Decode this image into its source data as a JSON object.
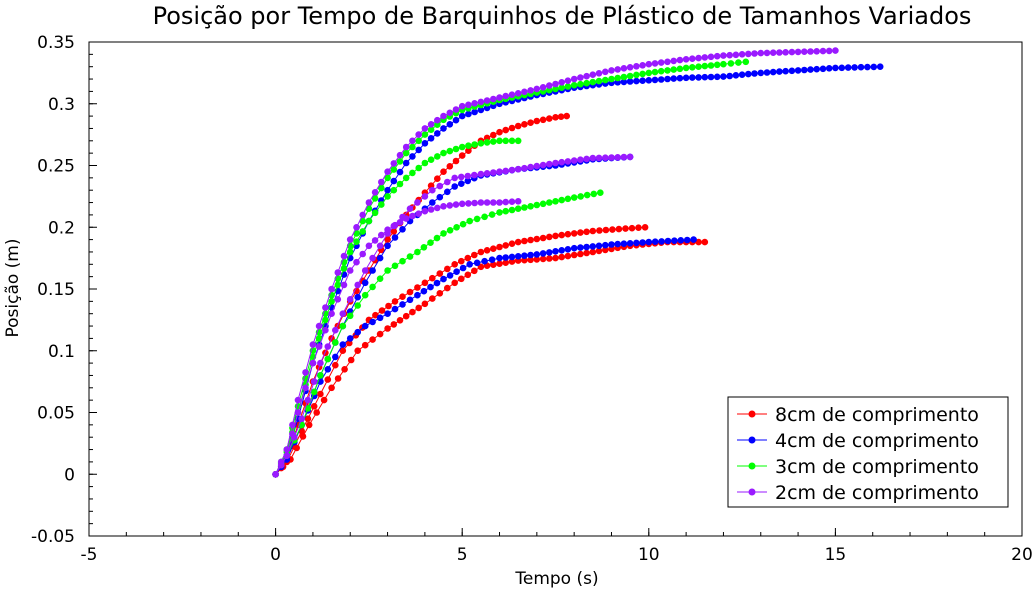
{
  "chart_data": {
    "type": "scatter",
    "title": "Posição por Tempo de Barquinhos de Plástico de Tamanhos Variados",
    "xlabel": "Tempo (s)",
    "ylabel": "Posição (m)",
    "xlim": [
      -5,
      20
    ],
    "ylim": [
      -0.05,
      0.35
    ],
    "x_ticks": [
      -5,
      0,
      5,
      10,
      15,
      20
    ],
    "y_ticks": [
      -0.05,
      0,
      0.05,
      0.1,
      0.15,
      0.2,
      0.25,
      0.3,
      0.35
    ],
    "x_tick_labels": [
      "-5",
      "0",
      "5",
      "10",
      "15",
      "20"
    ],
    "y_tick_labels": [
      "-0.05",
      "0",
      "0.05",
      "0.1",
      "0.15",
      "0.2",
      "0.25",
      "0.3",
      "0.35"
    ],
    "grid": false,
    "legend_position": "bottom-right",
    "series": [
      {
        "name": "8cm de comprimento",
        "color": "#ff0000",
        "runs": [
          {
            "points": [
              [
                0,
                0
              ],
              [
                0.3,
                0.012
              ],
              [
                0.6,
                0.04
              ],
              [
                1.0,
                0.075
              ],
              [
                1.5,
                0.11
              ],
              [
                2.0,
                0.14
              ],
              [
                2.5,
                0.165
              ],
              [
                3.0,
                0.19
              ],
              [
                3.5,
                0.21
              ],
              [
                4.0,
                0.228
              ],
              [
                4.5,
                0.245
              ],
              [
                5.0,
                0.258
              ],
              [
                5.5,
                0.27
              ],
              [
                6.0,
                0.277
              ],
              [
                6.5,
                0.282
              ],
              [
                7.0,
                0.286
              ],
              [
                7.5,
                0.289
              ],
              [
                7.8,
                0.29
              ]
            ]
          },
          {
            "points": [
              [
                0,
                0
              ],
              [
                0.3,
                0.01
              ],
              [
                0.7,
                0.035
              ],
              [
                1.2,
                0.065
              ],
              [
                1.8,
                0.1
              ],
              [
                2.5,
                0.125
              ],
              [
                3.2,
                0.14
              ],
              [
                4.0,
                0.155
              ],
              [
                4.8,
                0.17
              ],
              [
                5.5,
                0.18
              ],
              [
                6.5,
                0.188
              ],
              [
                7.5,
                0.193
              ],
              [
                8.5,
                0.197
              ],
              [
                9.9,
                0.2
              ]
            ]
          },
          {
            "points": [
              [
                0,
                0
              ],
              [
                0.4,
                0.012
              ],
              [
                0.9,
                0.04
              ],
              [
                1.5,
                0.07
              ],
              [
                2.2,
                0.1
              ],
              [
                3.0,
                0.118
              ],
              [
                4.0,
                0.138
              ],
              [
                4.8,
                0.155
              ],
              [
                5.5,
                0.168
              ],
              [
                6.5,
                0.173
              ],
              [
                7.5,
                0.175
              ],
              [
                8.5,
                0.18
              ],
              [
                9.5,
                0.185
              ],
              [
                10.5,
                0.188
              ],
              [
                11.5,
                0.188
              ]
            ]
          }
        ]
      },
      {
        "name": "4cm de comprimento",
        "color": "#0000ff",
        "runs": [
          {
            "points": [
              [
                0,
                0
              ],
              [
                0.3,
                0.015
              ],
              [
                0.6,
                0.045
              ],
              [
                1.0,
                0.09
              ],
              [
                1.5,
                0.135
              ],
              [
                2.0,
                0.175
              ],
              [
                2.5,
                0.205
              ],
              [
                3.0,
                0.23
              ],
              [
                3.5,
                0.252
              ],
              [
                4.0,
                0.268
              ],
              [
                4.5,
                0.28
              ],
              [
                5.0,
                0.29
              ],
              [
                6.0,
                0.3
              ],
              [
                7.0,
                0.307
              ],
              [
                8.0,
                0.313
              ],
              [
                9.0,
                0.317
              ],
              [
                10.0,
                0.319
              ],
              [
                11.0,
                0.321
              ],
              [
                12.0,
                0.322
              ],
              [
                13.0,
                0.325
              ],
              [
                14.0,
                0.327
              ],
              [
                15.0,
                0.329
              ],
              [
                16.2,
                0.33
              ]
            ]
          },
          {
            "points": [
              [
                0,
                0
              ],
              [
                0.3,
                0.012
              ],
              [
                0.7,
                0.04
              ],
              [
                1.2,
                0.08
              ],
              [
                1.8,
                0.12
              ],
              [
                2.4,
                0.155
              ],
              [
                3.0,
                0.185
              ],
              [
                3.6,
                0.205
              ],
              [
                4.2,
                0.22
              ],
              [
                4.8,
                0.233
              ],
              [
                5.5,
                0.242
              ],
              [
                6.5,
                0.247
              ],
              [
                7.5,
                0.25
              ],
              [
                8.5,
                0.255
              ],
              [
                9.5,
                0.257
              ]
            ]
          },
          {
            "points": [
              [
                0,
                0
              ],
              [
                0.3,
                0.012
              ],
              [
                0.7,
                0.04
              ],
              [
                1.2,
                0.075
              ],
              [
                1.8,
                0.105
              ],
              [
                2.4,
                0.12
              ],
              [
                3.0,
                0.13
              ],
              [
                3.8,
                0.145
              ],
              [
                4.5,
                0.158
              ],
              [
                5.2,
                0.17
              ],
              [
                6.0,
                0.175
              ],
              [
                7.0,
                0.178
              ],
              [
                8.0,
                0.183
              ],
              [
                9.0,
                0.186
              ],
              [
                10.0,
                0.188
              ],
              [
                11.2,
                0.19
              ]
            ]
          }
        ]
      },
      {
        "name": "3cm de comprimento",
        "color": "#00ff00",
        "runs": [
          {
            "points": [
              [
                0,
                0
              ],
              [
                0.3,
                0.02
              ],
              [
                0.6,
                0.055
              ],
              [
                1.0,
                0.1
              ],
              [
                1.5,
                0.145
              ],
              [
                2.0,
                0.185
              ],
              [
                2.5,
                0.215
              ],
              [
                3.0,
                0.24
              ],
              [
                3.5,
                0.26
              ],
              [
                4.0,
                0.275
              ],
              [
                4.5,
                0.287
              ],
              [
                5.0,
                0.295
              ],
              [
                6.0,
                0.303
              ],
              [
                7.0,
                0.309
              ],
              [
                8.0,
                0.315
              ],
              [
                9.0,
                0.32
              ],
              [
                10.0,
                0.325
              ],
              [
                11.0,
                0.329
              ],
              [
                12.0,
                0.332
              ],
              [
                12.6,
                0.334
              ]
            ]
          },
          {
            "points": [
              [
                0,
                0
              ],
              [
                0.3,
                0.018
              ],
              [
                0.6,
                0.05
              ],
              [
                1.0,
                0.095
              ],
              [
                1.5,
                0.14
              ],
              [
                2.0,
                0.18
              ],
              [
                2.5,
                0.205
              ],
              [
                3.0,
                0.225
              ],
              [
                3.5,
                0.24
              ],
              [
                4.0,
                0.252
              ],
              [
                4.5,
                0.26
              ],
              [
                5.0,
                0.265
              ],
              [
                5.5,
                0.268
              ],
              [
                6.0,
                0.27
              ],
              [
                6.5,
                0.27
              ]
            ]
          },
          {
            "points": [
              [
                0,
                0
              ],
              [
                0.3,
                0.015
              ],
              [
                0.7,
                0.04
              ],
              [
                1.2,
                0.08
              ],
              [
                1.8,
                0.12
              ],
              [
                2.4,
                0.145
              ],
              [
                3.0,
                0.165
              ],
              [
                3.8,
                0.18
              ],
              [
                4.5,
                0.195
              ],
              [
                5.2,
                0.205
              ],
              [
                6.0,
                0.212
              ],
              [
                7.0,
                0.218
              ],
              [
                8.0,
                0.224
              ],
              [
                8.7,
                0.228
              ]
            ]
          }
        ]
      },
      {
        "name": "2cm de comprimento",
        "color": "#9a1aff",
        "runs": [
          {
            "points": [
              [
                0,
                0
              ],
              [
                0.3,
                0.02
              ],
              [
                0.6,
                0.06
              ],
              [
                1.0,
                0.105
              ],
              [
                1.5,
                0.15
              ],
              [
                2.0,
                0.19
              ],
              [
                2.5,
                0.22
              ],
              [
                3.0,
                0.245
              ],
              [
                3.5,
                0.265
              ],
              [
                4.0,
                0.28
              ],
              [
                4.5,
                0.29
              ],
              [
                5.0,
                0.298
              ],
              [
                6.0,
                0.305
              ],
              [
                7.0,
                0.312
              ],
              [
                8.0,
                0.32
              ],
              [
                9.0,
                0.327
              ],
              [
                10.0,
                0.332
              ],
              [
                11.0,
                0.336
              ],
              [
                12.0,
                0.339
              ],
              [
                13.0,
                0.341
              ],
              [
                14.0,
                0.342
              ],
              [
                15.0,
                0.343
              ]
            ]
          },
          {
            "points": [
              [
                0,
                0
              ],
              [
                0.3,
                0.015
              ],
              [
                0.7,
                0.045
              ],
              [
                1.2,
                0.09
              ],
              [
                1.8,
                0.13
              ],
              [
                2.4,
                0.165
              ],
              [
                3.0,
                0.195
              ],
              [
                3.6,
                0.215
              ],
              [
                4.2,
                0.23
              ],
              [
                4.8,
                0.24
              ],
              [
                5.5,
                0.243
              ],
              [
                6.5,
                0.247
              ],
              [
                7.5,
                0.252
              ],
              [
                8.5,
                0.256
              ],
              [
                9.5,
                0.257
              ]
            ]
          },
          {
            "points": [
              [
                0,
                0
              ],
              [
                0.3,
                0.015
              ],
              [
                0.6,
                0.05
              ],
              [
                1.0,
                0.09
              ],
              [
                1.5,
                0.13
              ],
              [
                2.0,
                0.165
              ],
              [
                2.5,
                0.185
              ],
              [
                3.0,
                0.198
              ],
              [
                3.5,
                0.207
              ],
              [
                4.0,
                0.213
              ],
              [
                4.5,
                0.217
              ],
              [
                5.0,
                0.219
              ],
              [
                5.5,
                0.22
              ],
              [
                6.0,
                0.22
              ],
              [
                6.5,
                0.221
              ]
            ]
          }
        ]
      }
    ]
  }
}
